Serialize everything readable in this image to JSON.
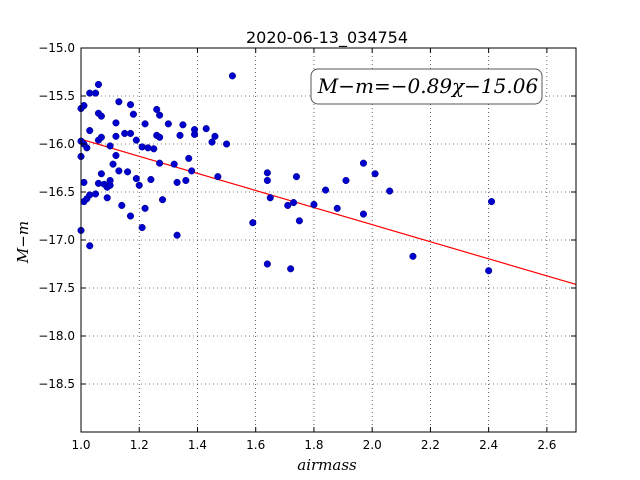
{
  "chart_data": {
    "type": "scatter",
    "title": "2020-06-13_034754",
    "xlabel": "airmass",
    "ylabel": "M−m",
    "xlim": [
      1.0,
      2.7
    ],
    "ylim": [
      -19.0,
      -15.0
    ],
    "y_inverted": true,
    "grid": true,
    "grid_style": "dotted",
    "x_ticks": [
      "1.0",
      "1.2",
      "1.4",
      "1.6",
      "1.8",
      "2.0",
      "2.2",
      "2.4",
      "2.6"
    ],
    "x_tick_values": [
      1.0,
      1.2,
      1.4,
      1.6,
      1.8,
      2.0,
      2.2,
      2.4,
      2.6
    ],
    "y_ticks": [
      "−15.0",
      "−15.5",
      "−16.0",
      "−16.5",
      "−17.0",
      "−17.5",
      "−18.0",
      "−18.5"
    ],
    "y_tick_values": [
      -15.0,
      -15.5,
      -16.0,
      -16.5,
      -17.0,
      -17.5,
      -18.0,
      -18.5
    ],
    "annotation": "M−m=−0.89χ−15.06",
    "annotation_placement": "top-right",
    "fit_line": {
      "slope": -0.89,
      "intercept": -15.06,
      "color": "#ff0000"
    },
    "marker_color": "#0000cc",
    "points": [
      {
        "x": 1.0,
        "y": -15.63
      },
      {
        "x": 1.0,
        "y": -15.97
      },
      {
        "x": 1.0,
        "y": -16.13
      },
      {
        "x": 1.0,
        "y": -16.9
      },
      {
        "x": 1.01,
        "y": -15.6
      },
      {
        "x": 1.01,
        "y": -16.0
      },
      {
        "x": 1.01,
        "y": -16.4
      },
      {
        "x": 1.01,
        "y": -16.6
      },
      {
        "x": 1.02,
        "y": -16.57
      },
      {
        "x": 1.02,
        "y": -16.04
      },
      {
        "x": 1.03,
        "y": -15.47
      },
      {
        "x": 1.03,
        "y": -15.86
      },
      {
        "x": 1.03,
        "y": -16.53
      },
      {
        "x": 1.03,
        "y": -17.06
      },
      {
        "x": 1.05,
        "y": -15.47
      },
      {
        "x": 1.05,
        "y": -16.52
      },
      {
        "x": 1.06,
        "y": -15.68
      },
      {
        "x": 1.06,
        "y": -15.96
      },
      {
        "x": 1.06,
        "y": -16.41
      },
      {
        "x": 1.06,
        "y": -15.38
      },
      {
        "x": 1.07,
        "y": -15.71
      },
      {
        "x": 1.07,
        "y": -15.93
      },
      {
        "x": 1.07,
        "y": -16.31
      },
      {
        "x": 1.08,
        "y": -16.42
      },
      {
        "x": 1.09,
        "y": -16.45
      },
      {
        "x": 1.09,
        "y": -16.56
      },
      {
        "x": 1.1,
        "y": -16.38
      },
      {
        "x": 1.1,
        "y": -16.43
      },
      {
        "x": 1.1,
        "y": -16.02
      },
      {
        "x": 1.11,
        "y": -16.21
      },
      {
        "x": 1.12,
        "y": -15.78
      },
      {
        "x": 1.12,
        "y": -15.92
      },
      {
        "x": 1.12,
        "y": -16.12
      },
      {
        "x": 1.13,
        "y": -16.28
      },
      {
        "x": 1.13,
        "y": -15.56
      },
      {
        "x": 1.14,
        "y": -16.64
      },
      {
        "x": 1.15,
        "y": -15.89
      },
      {
        "x": 1.16,
        "y": -16.29
      },
      {
        "x": 1.17,
        "y": -15.59
      },
      {
        "x": 1.17,
        "y": -15.89
      },
      {
        "x": 1.17,
        "y": -16.75
      },
      {
        "x": 1.18,
        "y": -15.69
      },
      {
        "x": 1.19,
        "y": -16.36
      },
      {
        "x": 1.19,
        "y": -15.96
      },
      {
        "x": 1.2,
        "y": -16.43
      },
      {
        "x": 1.21,
        "y": -16.87
      },
      {
        "x": 1.21,
        "y": -16.03
      },
      {
        "x": 1.22,
        "y": -16.67
      },
      {
        "x": 1.22,
        "y": -15.79
      },
      {
        "x": 1.23,
        "y": -16.04
      },
      {
        "x": 1.24,
        "y": -16.37
      },
      {
        "x": 1.25,
        "y": -16.05
      },
      {
        "x": 1.26,
        "y": -15.64
      },
      {
        "x": 1.26,
        "y": -15.91
      },
      {
        "x": 1.27,
        "y": -15.7
      },
      {
        "x": 1.27,
        "y": -15.93
      },
      {
        "x": 1.27,
        "y": -16.2
      },
      {
        "x": 1.28,
        "y": -16.58
      },
      {
        "x": 1.3,
        "y": -15.79
      },
      {
        "x": 1.32,
        "y": -16.21
      },
      {
        "x": 1.33,
        "y": -16.4
      },
      {
        "x": 1.33,
        "y": -16.95
      },
      {
        "x": 1.34,
        "y": -15.91
      },
      {
        "x": 1.35,
        "y": -15.8
      },
      {
        "x": 1.36,
        "y": -16.38
      },
      {
        "x": 1.37,
        "y": -16.15
      },
      {
        "x": 1.38,
        "y": -16.28
      },
      {
        "x": 1.39,
        "y": -15.85
      },
      {
        "x": 1.39,
        "y": -15.9
      },
      {
        "x": 1.43,
        "y": -15.84
      },
      {
        "x": 1.45,
        "y": -15.98
      },
      {
        "x": 1.46,
        "y": -15.92
      },
      {
        "x": 1.47,
        "y": -16.34
      },
      {
        "x": 1.5,
        "y": -16.0
      },
      {
        "x": 1.52,
        "y": -15.29
      },
      {
        "x": 1.59,
        "y": -16.82
      },
      {
        "x": 1.64,
        "y": -16.3
      },
      {
        "x": 1.64,
        "y": -16.38
      },
      {
        "x": 1.64,
        "y": -17.25
      },
      {
        "x": 1.65,
        "y": -16.56
      },
      {
        "x": 1.71,
        "y": -16.64
      },
      {
        "x": 1.72,
        "y": -17.3
      },
      {
        "x": 1.73,
        "y": -16.61
      },
      {
        "x": 1.74,
        "y": -16.34
      },
      {
        "x": 1.75,
        "y": -16.8
      },
      {
        "x": 1.8,
        "y": -16.63
      },
      {
        "x": 1.84,
        "y": -16.48
      },
      {
        "x": 1.88,
        "y": -16.67
      },
      {
        "x": 1.91,
        "y": -16.38
      },
      {
        "x": 1.97,
        "y": -16.2
      },
      {
        "x": 1.97,
        "y": -16.73
      },
      {
        "x": 2.01,
        "y": -16.31
      },
      {
        "x": 2.06,
        "y": -16.49
      },
      {
        "x": 2.14,
        "y": -17.17
      },
      {
        "x": 2.4,
        "y": -17.32
      },
      {
        "x": 2.41,
        "y": -16.6
      }
    ]
  }
}
